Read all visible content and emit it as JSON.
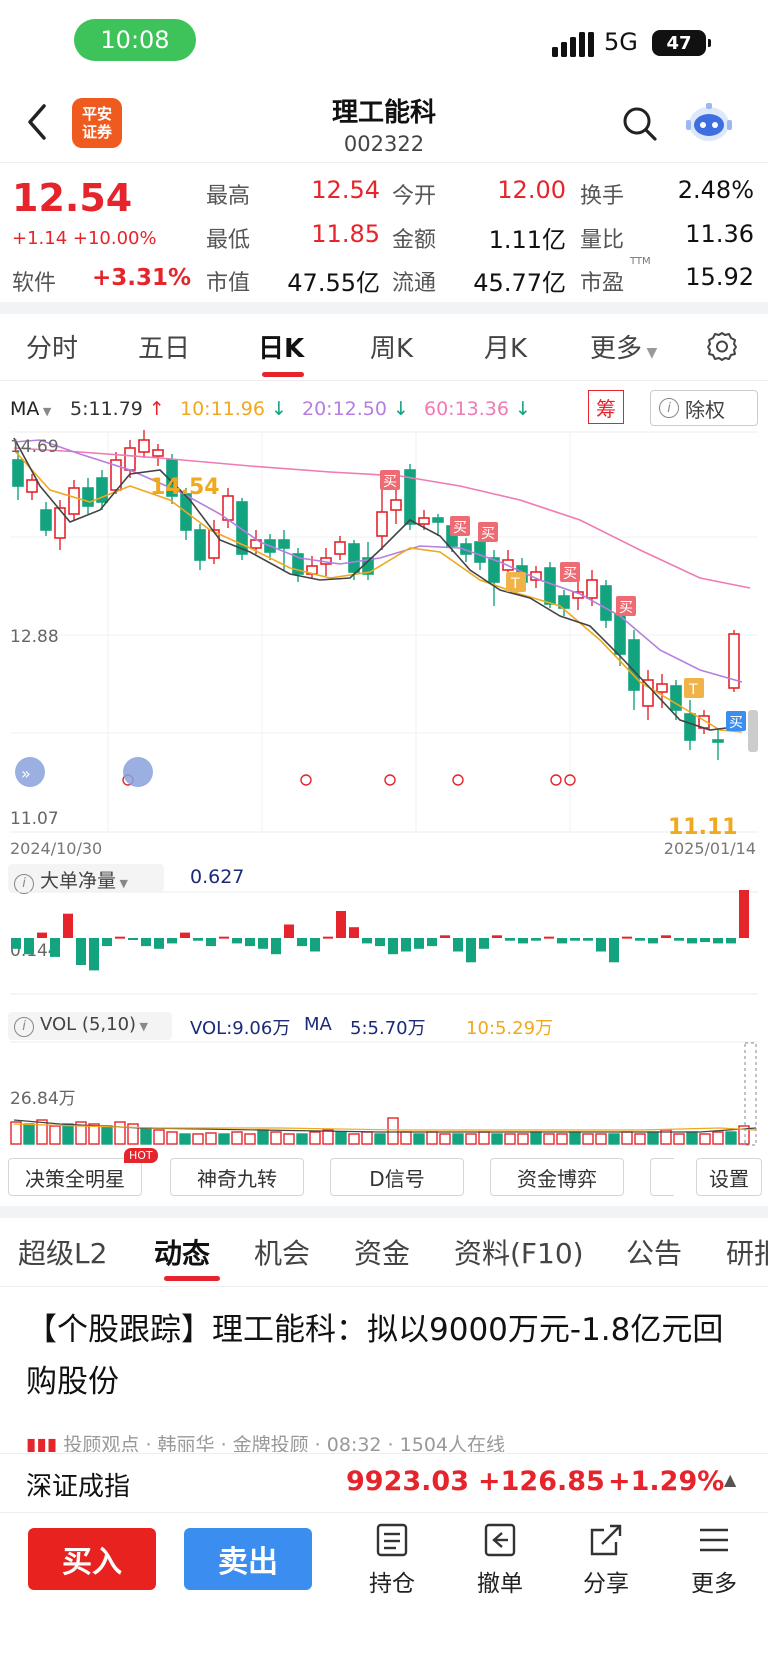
{
  "status_bar": {
    "time": "10:08",
    "network": "5G",
    "battery": "47"
  },
  "header": {
    "logo_line1": "平安",
    "logo_line2": "证券",
    "name": "理工能科",
    "code": "002322"
  },
  "quote": {
    "price": "12.54",
    "change": "+1.14 +10.00%",
    "sector_label": "软件",
    "sector_change": "+3.31%",
    "high_label": "最高",
    "high": "12.54",
    "open_label": "今开",
    "open": "12.00",
    "turnover_label": "换手",
    "turnover": "2.48%",
    "low_label": "最低",
    "low": "11.85",
    "amount_label": "金额",
    "amount": "1.11亿",
    "vol_ratio_label": "量比",
    "vol_ratio": "11.36",
    "mktcap_label": "市值",
    "mktcap": "47.55亿",
    "float_label": "流通",
    "float": "45.77亿",
    "pe_label": "市盈",
    "pe_sup": "TTM",
    "pe": "15.92"
  },
  "chart_tabs": [
    "分时",
    "五日",
    "日K",
    "周K",
    "月K",
    "更多"
  ],
  "ma_bar": {
    "label": "MA",
    "ma5": "5:11.79",
    "ma10": "10:11.96",
    "ma20": "20:12.50",
    "ma60": "60:13.36",
    "chou": "筹",
    "chuquan": "除权",
    "colors": {
      "ma5": "#333333",
      "ma10": "#f0a81e",
      "ma20": "#b57ee0",
      "ma60": "#f07ab5"
    }
  },
  "kline": {
    "y_top": "14.69",
    "y_mid": "12.88",
    "y_bottom": "11.07",
    "max_label": "14.54",
    "min_label": "11.11",
    "date_start": "2024/10/30",
    "date_end": "2025/01/14",
    "buy_tag": "买",
    "t_tag": "T",
    "current_tag": "买"
  },
  "big_order": {
    "label": "大单净量",
    "value": "0.627",
    "axis": "0.144"
  },
  "volume": {
    "label": "VOL (5,10)",
    "vol": "VOL:9.06万",
    "ma_label": "MA",
    "ma5": "5:5.70万",
    "ma10": "10:5.29万",
    "axis": "26.84万"
  },
  "indicators": [
    "决策全明星",
    "神奇九转",
    "D信号",
    "资金博弈",
    "设置"
  ],
  "hot_badge": "HOT",
  "news_tabs": [
    "超级L2",
    "动态",
    "机会",
    "资金",
    "资料(F10)",
    "公告",
    "研报"
  ],
  "news": {
    "headline": "【个股跟踪】理工能科：拟以9000万元-1.8亿元回购股份",
    "byline": "投顾观点 · 韩丽华 · 金牌投顾 · 08:32 · 1504人在线"
  },
  "index": {
    "name": "深证成指",
    "value": "9923.03",
    "change": "+126.85",
    "pct": "+1.29%"
  },
  "bottom_bar": {
    "buy": "买入",
    "sell": "卖出",
    "holdings": "持仓",
    "cancel": "撤单",
    "share": "分享",
    "more": "更多"
  }
}
